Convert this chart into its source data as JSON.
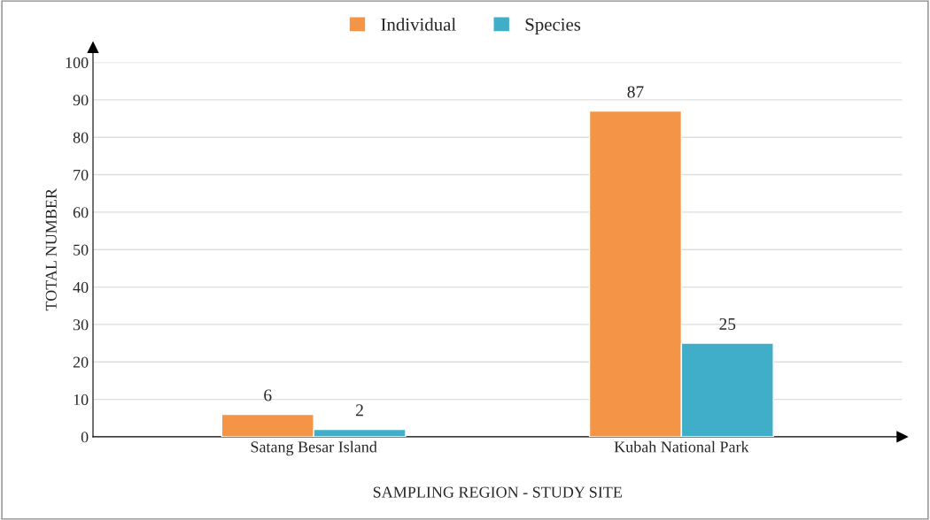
{
  "chart_data": {
    "type": "bar",
    "xlabel": "SAMPLING REGION - STUDY SITE",
    "ylabel": "TOTAL NUMBER",
    "categories": [
      "Satang Besar Island",
      "Kubah National Park"
    ],
    "series": [
      {
        "name": "Individual",
        "color": "#f39447",
        "values": [
          6,
          87
        ]
      },
      {
        "name": "Species",
        "color": "#40aec8",
        "values": [
          2,
          25
        ]
      }
    ],
    "ylim": [
      0,
      100
    ],
    "yticks": [
      0,
      10,
      20,
      30,
      40,
      50,
      60,
      70,
      80,
      90,
      100
    ],
    "grid": "y",
    "legend": "top",
    "data_labels": true
  }
}
